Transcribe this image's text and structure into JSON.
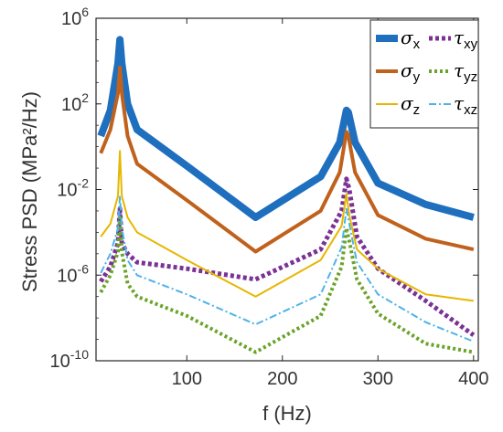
{
  "chart_data": {
    "type": "line",
    "title": "",
    "xlabel": "f (Hz)",
    "ylabel": "Stress PSD (MPa²/Hz)",
    "xlim": [
      5,
      405
    ],
    "ylim_exp": [
      -10,
      6
    ],
    "yscale": "log",
    "x_ticks": [
      100,
      200,
      300,
      400
    ],
    "y_ticks": [
      {
        "exp": -10,
        "label": "10-10"
      },
      {
        "exp": -6,
        "label": "10-6"
      },
      {
        "exp": -2,
        "label": "10-2"
      },
      {
        "exp": 2,
        "label": "102"
      },
      {
        "exp": 6,
        "label": "106"
      }
    ],
    "legend_position": "top-right",
    "series": [
      {
        "name": "σx",
        "symbol": "σ",
        "sub": "x",
        "color": "#1f6fbf",
        "width": 8,
        "dash": "",
        "points": [
          [
            10,
            0.5
          ],
          [
            20,
            1.7
          ],
          [
            28,
            3.9
          ],
          [
            30,
            5.0
          ],
          [
            32,
            3.9
          ],
          [
            38,
            2.0
          ],
          [
            48,
            0.8
          ],
          [
            100,
            -0.9
          ],
          [
            172,
            -3.3
          ],
          [
            240,
            -1.4
          ],
          [
            260,
            0.2
          ],
          [
            267,
            1.7
          ],
          [
            269,
            1.6
          ],
          [
            276,
            0.2
          ],
          [
            300,
            -1.7
          ],
          [
            350,
            -2.7
          ],
          [
            400,
            -3.3
          ]
        ]
      },
      {
        "name": "σy",
        "symbol": "σ",
        "sub": "y",
        "color": "#c0611c",
        "width": 4,
        "dash": "",
        "points": [
          [
            10,
            -0.3
          ],
          [
            20,
            0.8
          ],
          [
            28,
            2.5
          ],
          [
            30,
            3.7
          ],
          [
            32,
            2.5
          ],
          [
            38,
            0.5
          ],
          [
            48,
            -0.8
          ],
          [
            100,
            -2.5
          ],
          [
            172,
            -4.9
          ],
          [
            240,
            -3.0
          ],
          [
            260,
            -1.2
          ],
          [
            267,
            0.7
          ],
          [
            269,
            0.5
          ],
          [
            276,
            -1.2
          ],
          [
            300,
            -3.2
          ],
          [
            350,
            -4.3
          ],
          [
            400,
            -4.8
          ]
        ]
      },
      {
        "name": "τxy",
        "symbol": "τ",
        "sub": "xy",
        "color": "#7b3294",
        "width": 5,
        "dash": "4,3",
        "points": [
          [
            10,
            -6.3
          ],
          [
            20,
            -5.6
          ],
          [
            28,
            -4.5
          ],
          [
            30,
            -2.9
          ],
          [
            32,
            -4.5
          ],
          [
            38,
            -5.0
          ],
          [
            48,
            -5.4
          ],
          [
            100,
            -5.7
          ],
          [
            172,
            -6.2
          ],
          [
            240,
            -4.8
          ],
          [
            262,
            -3.0
          ],
          [
            267,
            -1.5
          ],
          [
            270,
            -2.0
          ],
          [
            278,
            -4.2
          ],
          [
            300,
            -5.7
          ],
          [
            350,
            -7.2
          ],
          [
            400,
            -8.8
          ]
        ]
      },
      {
        "name": "σz",
        "symbol": "σ",
        "sub": "z",
        "color": "#e6b700",
        "width": 2,
        "dash": "",
        "points": [
          [
            10,
            -4.2
          ],
          [
            20,
            -3.6
          ],
          [
            28,
            -2.3
          ],
          [
            30,
            -0.2
          ],
          [
            32,
            -2.3
          ],
          [
            38,
            -3.3
          ],
          [
            48,
            -4.0
          ],
          [
            100,
            -5.3
          ],
          [
            172,
            -7.0
          ],
          [
            240,
            -5.3
          ],
          [
            262,
            -3.7
          ],
          [
            267,
            -2.2
          ],
          [
            270,
            -3.2
          ],
          [
            278,
            -4.8
          ],
          [
            300,
            -5.7
          ],
          [
            350,
            -6.9
          ],
          [
            400,
            -7.2
          ]
        ]
      },
      {
        "name": "τyz",
        "symbol": "τ",
        "sub": "yz",
        "color": "#6aa32a",
        "width": 4,
        "dash": "3,3",
        "points": [
          [
            10,
            -6.8
          ],
          [
            20,
            -6.0
          ],
          [
            28,
            -4.9
          ],
          [
            30,
            -3.3
          ],
          [
            32,
            -4.9
          ],
          [
            38,
            -6.4
          ],
          [
            48,
            -7.0
          ],
          [
            100,
            -7.9
          ],
          [
            172,
            -9.6
          ],
          [
            240,
            -7.9
          ],
          [
            262,
            -5.6
          ],
          [
            267,
            -3.8
          ],
          [
            270,
            -4.4
          ],
          [
            278,
            -6.2
          ],
          [
            300,
            -7.8
          ],
          [
            350,
            -9.2
          ],
          [
            400,
            -9.6
          ]
        ]
      },
      {
        "name": "τxz",
        "symbol": "τ",
        "sub": "xz",
        "color": "#4db3e6",
        "width": 2,
        "dash": "8,3,2,3",
        "points": [
          [
            10,
            -5.9
          ],
          [
            20,
            -5.0
          ],
          [
            28,
            -3.8
          ],
          [
            30,
            -2.3
          ],
          [
            32,
            -3.8
          ],
          [
            38,
            -5.3
          ],
          [
            48,
            -6.0
          ],
          [
            100,
            -6.9
          ],
          [
            172,
            -8.3
          ],
          [
            240,
            -6.9
          ],
          [
            262,
            -4.7
          ],
          [
            267,
            -2.9
          ],
          [
            270,
            -3.6
          ],
          [
            278,
            -5.4
          ],
          [
            300,
            -6.9
          ],
          [
            350,
            -8.2
          ],
          [
            400,
            -9.1
          ]
        ]
      }
    ]
  }
}
